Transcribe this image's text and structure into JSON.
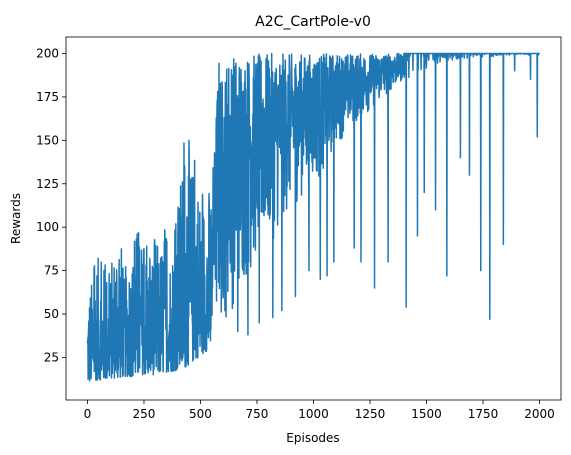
{
  "chart_data": {
    "type": "line",
    "title": "A2C_CartPole-v0",
    "xlabel": "Episodes",
    "ylabel": "Rewards",
    "xlim": [
      -95,
      2095
    ],
    "ylim": [
      0.5,
      209.5
    ],
    "xticks": [
      0,
      250,
      500,
      750,
      1000,
      1250,
      1500,
      1750,
      2000
    ],
    "yticks": [
      25,
      50,
      75,
      100,
      125,
      150,
      175,
      200
    ],
    "grid": false,
    "line_color": "#1f77b4",
    "series": [
      {
        "x": [
          0,
          20,
          40,
          60,
          80,
          100,
          120,
          140,
          160,
          180,
          200,
          220,
          240,
          260,
          280,
          300,
          320,
          340,
          360,
          380,
          400,
          420,
          440,
          460,
          480,
          500,
          520,
          540,
          560,
          580,
          600,
          620,
          640,
          660,
          680,
          700,
          720,
          740,
          760,
          780,
          800,
          820,
          840,
          860,
          880,
          900,
          920,
          940,
          960,
          980,
          1000,
          1020,
          1040,
          1060,
          1080,
          1100,
          1120,
          1140,
          1160,
          1180,
          1200,
          1220,
          1240,
          1260,
          1280,
          1300,
          1320,
          1340,
          1360,
          1380,
          1400,
          1420,
          1440,
          1460,
          1480,
          1500,
          1520,
          1540,
          1560,
          1580,
          1600,
          1620,
          1640,
          1660,
          1680,
          1700,
          1720,
          1740,
          1760,
          1780,
          1800,
          1820,
          1840,
          1860,
          1880,
          1900,
          1920,
          1940,
          1960,
          1980,
          2000
        ],
        "low": [
          10,
          11,
          12,
          12,
          12,
          13,
          13,
          13,
          14,
          14,
          14,
          14,
          15,
          15,
          15,
          15,
          16,
          16,
          17,
          17,
          18,
          18,
          20,
          22,
          24,
          26,
          28,
          30,
          32,
          36,
          40,
          45,
          50,
          55,
          60,
          65,
          70,
          75,
          80,
          85,
          88,
          92,
          95,
          100,
          105,
          108,
          112,
          115,
          118,
          120,
          122,
          125,
          130,
          135,
          140,
          145,
          150,
          152,
          155,
          158,
          160,
          162,
          165,
          168,
          170,
          172,
          175,
          178,
          180,
          182,
          185,
          186,
          188,
          189,
          190,
          191,
          192,
          193,
          194,
          195,
          196,
          196,
          197,
          197,
          197,
          198,
          198,
          198,
          198,
          198,
          198,
          199,
          199,
          199,
          199,
          199,
          199,
          199,
          199,
          199,
          199
        ],
        "high": [
          62,
          70,
          84,
          80,
          78,
          72,
          90,
          113,
          70,
          88,
          85,
          102,
          85,
          90,
          80,
          95,
          88,
          100,
          85,
          92,
          110,
          140,
          164,
          135,
          140,
          118,
          120,
          125,
          140,
          200,
          184,
          200,
          200,
          200,
          200,
          200,
          200,
          200,
          200,
          200,
          200,
          200,
          200,
          200,
          200,
          200,
          200,
          200,
          200,
          200,
          200,
          200,
          200,
          200,
          200,
          200,
          200,
          200,
          200,
          200,
          200,
          200,
          200,
          200,
          200,
          200,
          200,
          200,
          200,
          200,
          200,
          200,
          200,
          200,
          200,
          200,
          200,
          200,
          200,
          200,
          200,
          200,
          200,
          200,
          200,
          200,
          200,
          200,
          200,
          200,
          200,
          200,
          200,
          200,
          200,
          200,
          200,
          200,
          200,
          200,
          200
        ]
      }
    ],
    "dips": [
      [
        665,
        40
      ],
      [
        710,
        38
      ],
      [
        760,
        45
      ],
      [
        820,
        48
      ],
      [
        860,
        52
      ],
      [
        920,
        60
      ],
      [
        980,
        75
      ],
      [
        1030,
        70
      ],
      [
        1060,
        72
      ],
      [
        1090,
        80
      ],
      [
        1180,
        88
      ],
      [
        1210,
        80
      ],
      [
        1270,
        65
      ],
      [
        1330,
        80
      ],
      [
        1410,
        54
      ],
      [
        1460,
        95
      ],
      [
        1490,
        120
      ],
      [
        1540,
        110
      ],
      [
        1590,
        72
      ],
      [
        1650,
        140
      ],
      [
        1690,
        130
      ],
      [
        1740,
        75
      ],
      [
        1780,
        47
      ],
      [
        1840,
        90
      ],
      [
        1890,
        190
      ],
      [
        1960,
        185
      ],
      [
        1990,
        152
      ]
    ]
  }
}
